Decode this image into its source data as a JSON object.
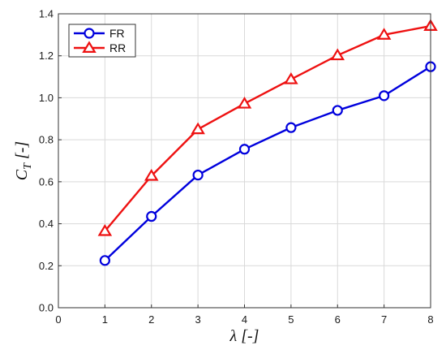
{
  "chart_data": {
    "type": "line",
    "xlabel": "λ [-]",
    "ylabel": {
      "main": "C",
      "sub": "T",
      "suffix": " [-]"
    },
    "xlim": [
      0,
      8
    ],
    "ylim": [
      0,
      1.4
    ],
    "xticks": [
      "0",
      "1",
      "2",
      "3",
      "4",
      "5",
      "6",
      "7",
      "8"
    ],
    "yticks": [
      "0.0",
      "0.2",
      "0.4",
      "0.6",
      "0.8",
      "1.0",
      "1.2",
      "1.4"
    ],
    "grid": true,
    "legend_position": "top-left",
    "x": [
      1,
      2,
      3,
      4,
      5,
      6,
      7,
      8
    ],
    "series": [
      {
        "name": "FR",
        "color": "#0000dd",
        "marker": "circle",
        "values": [
          0.225,
          0.435,
          0.632,
          0.755,
          0.858,
          0.94,
          1.01,
          1.148
        ]
      },
      {
        "name": "RR",
        "color": "#ee1111",
        "marker": "triangle",
        "values": [
          0.365,
          0.628,
          0.85,
          0.972,
          1.088,
          1.202,
          1.3,
          1.342
        ]
      }
    ]
  }
}
